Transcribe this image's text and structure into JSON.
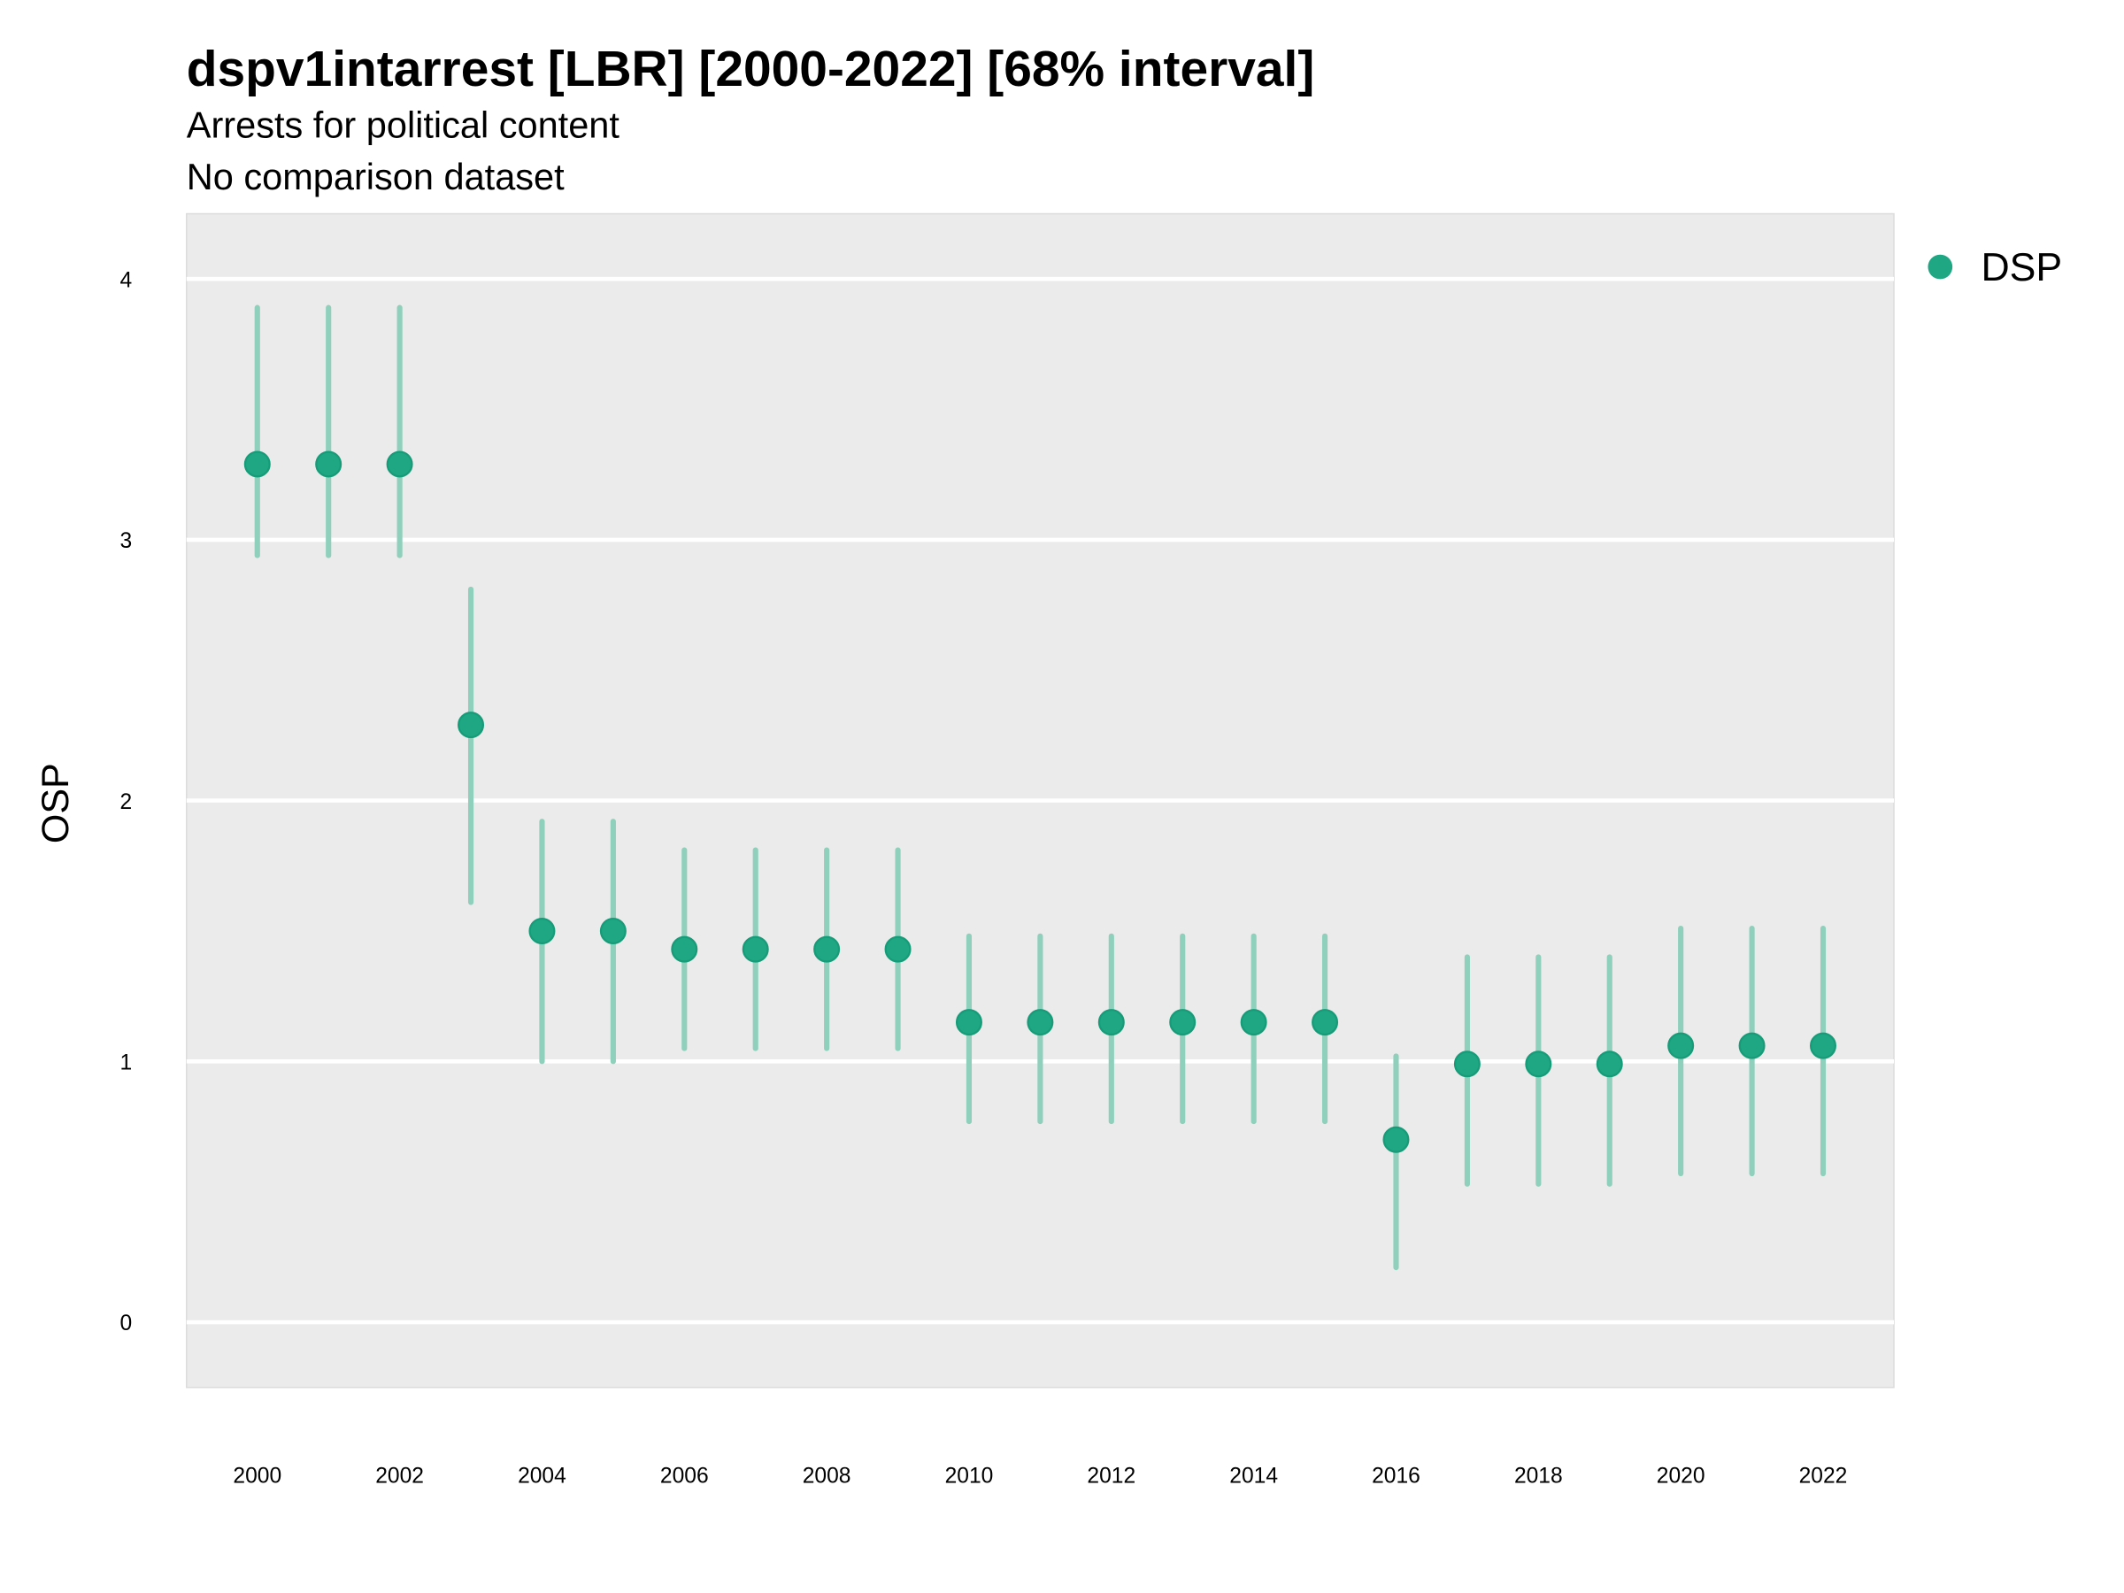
{
  "chart_data": {
    "type": "scatter",
    "title": "dspv1intarrest [LBR] [2000-2022] [68% interval]",
    "subtitle": "Arrests for political content",
    "caption_line": "No comparison dataset",
    "xlabel": "",
    "ylabel": "OSP",
    "xlim": [
      1999,
      2023
    ],
    "ylim": [
      -0.25,
      4.25
    ],
    "x_ticks": [
      2000,
      2002,
      2004,
      2006,
      2008,
      2010,
      2012,
      2014,
      2016,
      2018,
      2020,
      2022
    ],
    "y_ticks": [
      0,
      1,
      2,
      3,
      4
    ],
    "grid": true,
    "legend": {
      "position": "top-right",
      "entries": [
        "DSP"
      ]
    },
    "colors": {
      "point": "#1fa683",
      "interval": "#8fd0bc",
      "panel": "#ebebeb",
      "grid": "#ffffff"
    },
    "series": [
      {
        "name": "DSP",
        "x": [
          2000,
          2001,
          2002,
          2003,
          2004,
          2005,
          2006,
          2007,
          2008,
          2009,
          2010,
          2011,
          2012,
          2013,
          2014,
          2015,
          2016,
          2017,
          2018,
          2019,
          2020,
          2021,
          2022
        ],
        "y": [
          3.29,
          3.29,
          3.29,
          2.29,
          1.5,
          1.5,
          1.43,
          1.43,
          1.43,
          1.43,
          1.15,
          1.15,
          1.15,
          1.15,
          1.15,
          1.15,
          0.7,
          0.99,
          0.99,
          0.99,
          1.06,
          1.06,
          1.06
        ],
        "low": [
          2.94,
          2.94,
          2.94,
          1.61,
          1.0,
          1.0,
          1.05,
          1.05,
          1.05,
          1.05,
          0.77,
          0.77,
          0.77,
          0.77,
          0.77,
          0.77,
          0.21,
          0.53,
          0.53,
          0.53,
          0.57,
          0.57,
          0.57
        ],
        "high": [
          3.89,
          3.89,
          3.89,
          2.81,
          1.92,
          1.92,
          1.81,
          1.81,
          1.81,
          1.81,
          1.48,
          1.48,
          1.48,
          1.48,
          1.48,
          1.48,
          1.02,
          1.4,
          1.4,
          1.4,
          1.51,
          1.51,
          1.51
        ]
      }
    ]
  }
}
